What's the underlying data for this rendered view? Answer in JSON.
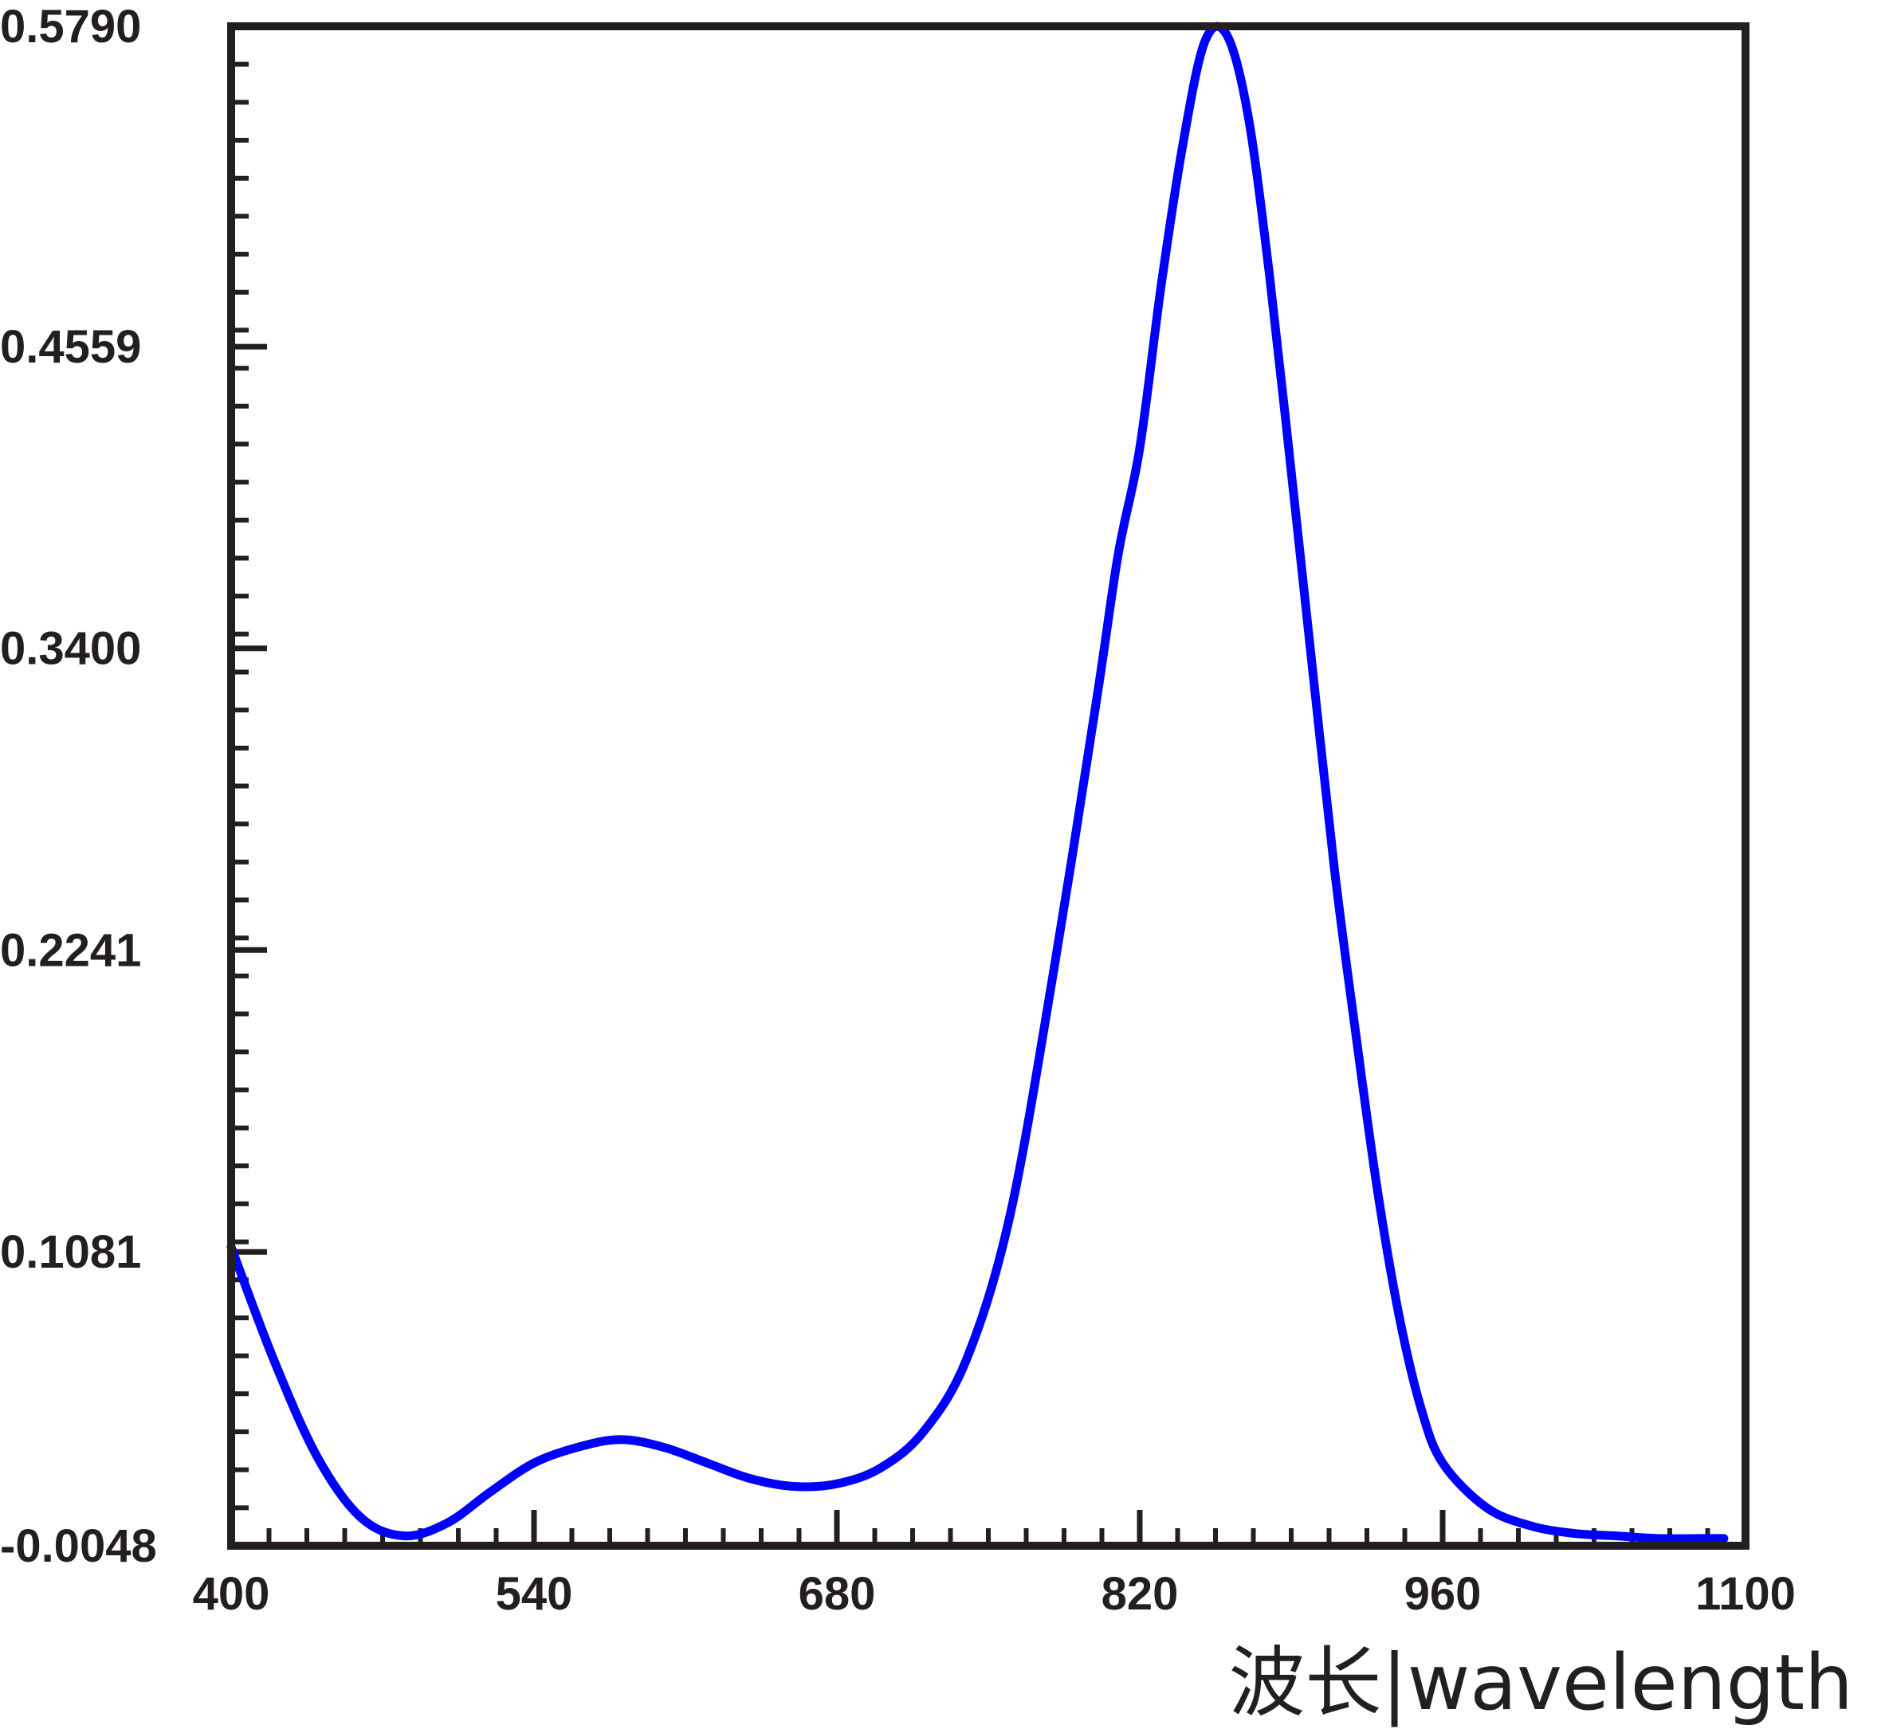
{
  "chart_data": {
    "type": "line",
    "xlabel": "波长|wavelength",
    "ylabel": "",
    "xlim": [
      400,
      1100
    ],
    "ylim": [
      -0.0048,
      0.579
    ],
    "x_ticks": [
      400,
      540,
      680,
      820,
      960,
      1100
    ],
    "x_tick_labels": [
      "400",
      "540",
      "680",
      "820",
      "960",
      "1100"
    ],
    "y_ticks": [
      -0.0048,
      0.1081,
      0.2241,
      0.34,
      0.4559,
      0.579
    ],
    "y_tick_labels": [
      "-0.0048",
      "0.1081",
      "0.2241",
      "0.3400",
      "0.4559",
      "0.5790"
    ],
    "grid": false,
    "series": [
      {
        "color": "#0000ff",
        "x": [
          400,
          420,
          440,
          460,
          480,
          500,
          520,
          540,
          560,
          580,
          600,
          620,
          640,
          660,
          680,
          700,
          720,
          740,
          760,
          780,
          800,
          810,
          820,
          830,
          840,
          850,
          860,
          870,
          880,
          890,
          900,
          910,
          920,
          930,
          940,
          950,
          960,
          980,
          1000,
          1020,
          1040,
          1060,
          1080,
          1090
        ],
        "values": [
          0.11,
          0.066,
          0.029,
          0.006,
          -0.001,
          0.004,
          0.016,
          0.027,
          0.033,
          0.036,
          0.033,
          0.027,
          0.021,
          0.018,
          0.019,
          0.025,
          0.039,
          0.067,
          0.122,
          0.215,
          0.32,
          0.376,
          0.417,
          0.48,
          0.534,
          0.573,
          0.576,
          0.545,
          0.483,
          0.408,
          0.331,
          0.255,
          0.191,
          0.131,
          0.083,
          0.048,
          0.027,
          0.01,
          0.003,
          0.0,
          -0.001,
          -0.002,
          -0.002,
          -0.002
        ]
      }
    ]
  },
  "colors": {
    "line": "#0000ff",
    "axis": "#231f20"
  }
}
